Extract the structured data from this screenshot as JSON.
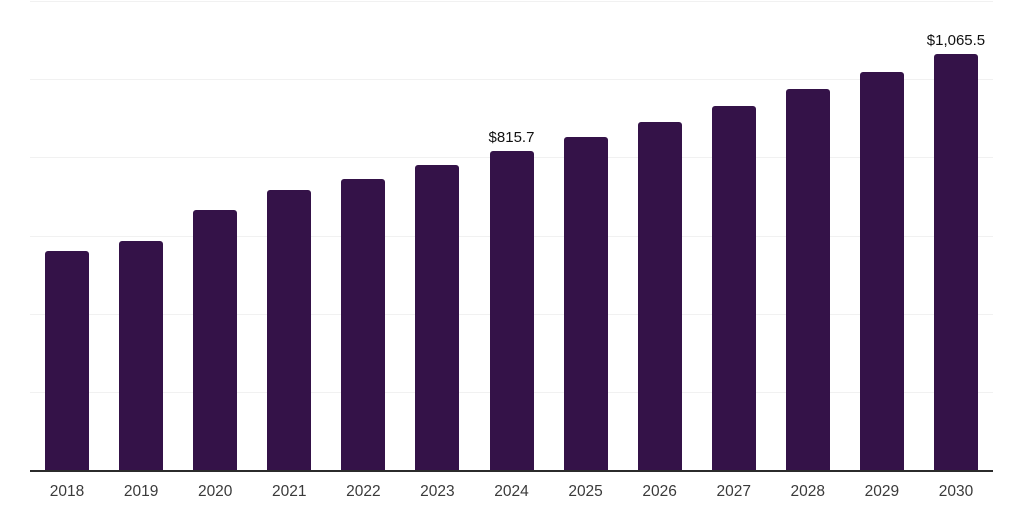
{
  "chart_data": {
    "type": "bar",
    "title": "",
    "xlabel": "",
    "ylabel": "",
    "categories": [
      "2018",
      "2019",
      "2020",
      "2021",
      "2022",
      "2023",
      "2024",
      "2025",
      "2026",
      "2027",
      "2028",
      "2029",
      "2030"
    ],
    "values": [
      560.3,
      586.0,
      665.0,
      716.1,
      745.2,
      781.7,
      815.7,
      852.8,
      891.7,
      932.3,
      974.7,
      1019.1,
      1065.5
    ],
    "labeled_points": [
      {
        "category": "2024",
        "label": "$815.7"
      },
      {
        "category": "2030",
        "label": "$1,065.5"
      }
    ],
    "ylim": [
      0,
      1200
    ],
    "gridline_values": [
      200,
      400,
      600,
      800,
      1000,
      1200
    ],
    "grid": "horizontal",
    "legend": "none",
    "value_prefix": "$",
    "colors": {
      "bar": "#341248",
      "gridline": "#f1f1f1",
      "axis_line": "#2b2b2b",
      "tick_label": "#3a3a3a",
      "data_label": "#111111"
    }
  }
}
